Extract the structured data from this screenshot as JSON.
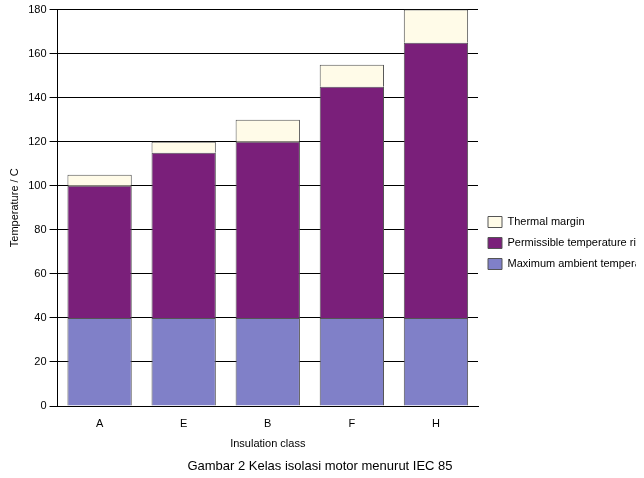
{
  "chart_data": {
    "type": "bar",
    "title": "Gambar 2 Kelas isolasi motor menurut IEC 85",
    "x_label": "Insulation class",
    "y_label": "Temperature / C",
    "categories": [
      "A",
      "E",
      "B",
      "F",
      "H"
    ],
    "series": [
      {
        "name": "Maximum ambient temperature",
        "color": "#8080c8",
        "values": [
          40,
          40,
          40,
          40,
          40
        ]
      },
      {
        "name": "Permissible temperature rise",
        "color": "#7a1f7a",
        "values": [
          60,
          75,
          80,
          105,
          125
        ]
      },
      {
        "name": "Thermal margin",
        "color": "#fffbe8",
        "values": [
          5,
          5,
          10,
          10,
          15
        ]
      }
    ],
    "ylim": [
      0,
      180
    ],
    "yticks": [
      0,
      20,
      40,
      60,
      80,
      100,
      120,
      140,
      160,
      180
    ],
    "stacked": true,
    "grid": true,
    "legend": "right"
  }
}
